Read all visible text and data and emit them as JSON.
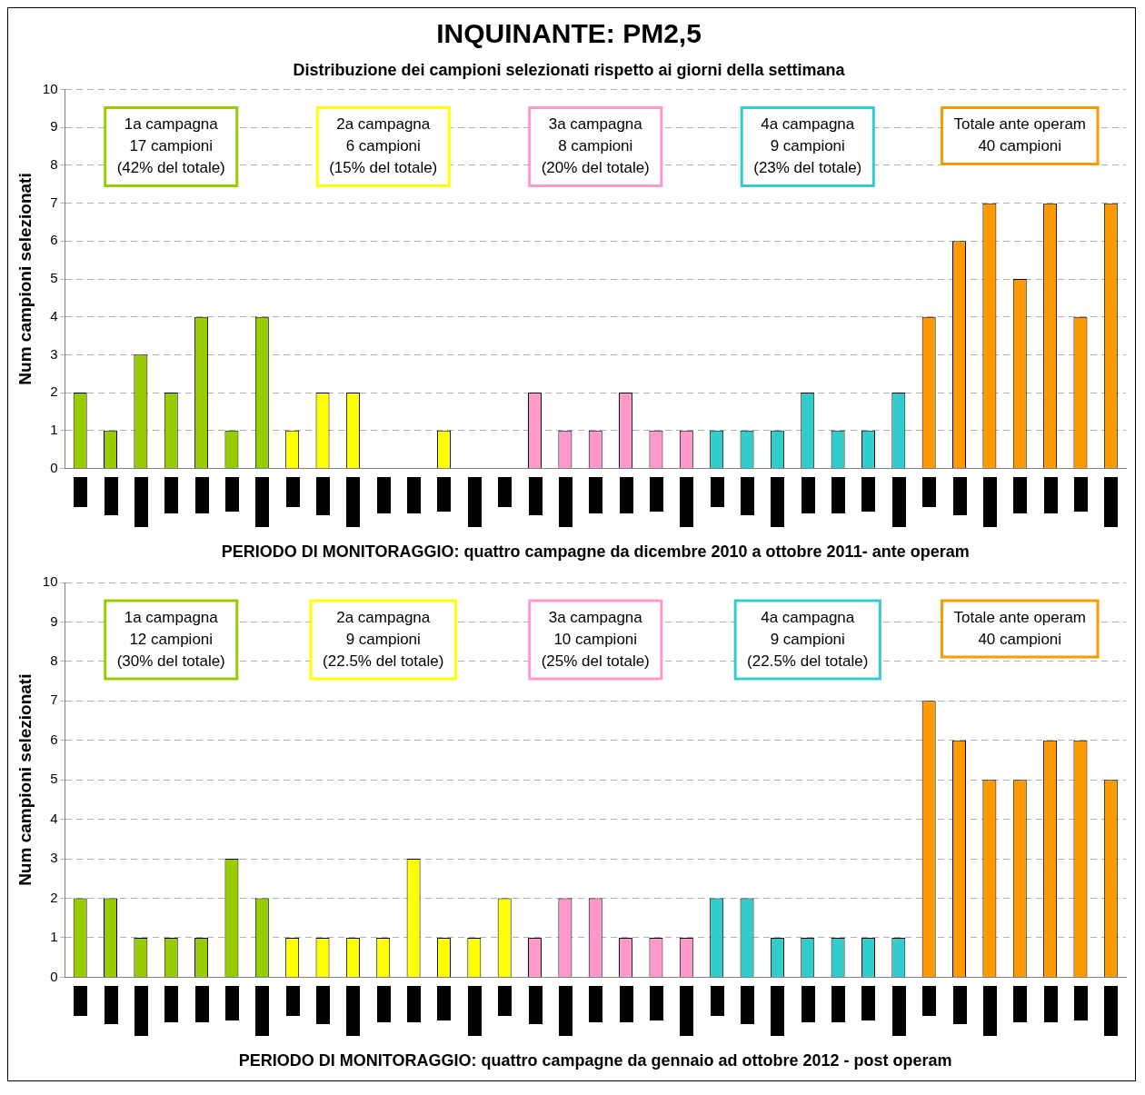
{
  "chart_data": [
    {
      "type": "bar",
      "title": "INQUINANTE: PM2,5",
      "subtitle": "Distribuzione dei campioni selezionati rispetto ai giorni della settimana",
      "xlabel": "PERIODO DI MONITORAGGIO: quattro campagne da dicembre 2010 a ottobre 2011- ante operam",
      "ylabel": "Num campioni selezionati",
      "categories": [
        null,
        null,
        null,
        null,
        null,
        null,
        null,
        null,
        null,
        null,
        null,
        null,
        null,
        null,
        null,
        null,
        null,
        null,
        null,
        null,
        null,
        null,
        null,
        null,
        null,
        null,
        null,
        null,
        null,
        null,
        null,
        null,
        null,
        null,
        null
      ],
      "values": [
        2,
        1,
        3,
        2,
        4,
        1,
        4,
        1,
        2,
        2,
        0,
        0,
        1,
        0,
        0,
        2,
        1,
        1,
        2,
        1,
        1,
        1,
        1,
        1,
        2,
        1,
        1,
        2,
        4,
        6,
        7,
        5,
        7,
        4,
        7
      ],
      "colors": [
        "#99cc00",
        "#99cc00",
        "#99cc00",
        "#99cc00",
        "#99cc00",
        "#99cc00",
        "#99cc00",
        "#ffff00",
        "#ffff00",
        "#ffff00",
        "#ffff00",
        "#ffff00",
        "#ffff00",
        "#ffff00",
        "#ff99cc",
        "#ff99cc",
        "#ff99cc",
        "#ff99cc",
        "#ff99cc",
        "#ff99cc",
        "#ff99cc",
        "#33cccc",
        "#33cccc",
        "#33cccc",
        "#33cccc",
        "#33cccc",
        "#33cccc",
        "#33cccc",
        "#ff9900",
        "#ff9900",
        "#ff9900",
        "#ff9900",
        "#ff9900",
        "#ff9900",
        "#ff9900"
      ],
      "ylim": [
        0,
        10
      ],
      "yticks": [
        0,
        1,
        2,
        3,
        4,
        5,
        6,
        7,
        8,
        9,
        10
      ],
      "grid": "y",
      "legend": false,
      "annotations": [
        "1a campagna\n17 campioni\n(42% del totale)",
        "2a campagna\n6 campioni\n(15% del totale)",
        "3a campagna\n8 campioni\n(20% del totale)",
        "4a campagna\n9 campioni\n(23% del totale)",
        "Totale ante operam\n40 campioni"
      ]
    },
    {
      "type": "bar",
      "xlabel": "PERIODO DI MONITORAGGIO: quattro campagne da gennaio ad ottobre 2012 - post operam",
      "ylabel": "Num campioni selezionati",
      "categories": [
        null,
        null,
        null,
        null,
        null,
        null,
        null,
        null,
        null,
        null,
        null,
        null,
        null,
        null,
        null,
        null,
        null,
        null,
        null,
        null,
        null,
        null,
        null,
        null,
        null,
        null,
        null,
        null,
        null,
        null,
        null,
        null,
        null,
        null,
        null
      ],
      "values": [
        2,
        2,
        1,
        1,
        1,
        3,
        2,
        1,
        1,
        1,
        1,
        3,
        1,
        1,
        2,
        1,
        2,
        2,
        1,
        1,
        1,
        2,
        2,
        1,
        1,
        1,
        1,
        1,
        7,
        6,
        5,
        5,
        6,
        6,
        5
      ],
      "colors": [
        "#99cc00",
        "#99cc00",
        "#99cc00",
        "#99cc00",
        "#99cc00",
        "#99cc00",
        "#99cc00",
        "#ffff00",
        "#ffff00",
        "#ffff00",
        "#ffff00",
        "#ffff00",
        "#ffff00",
        "#ffff00",
        "#ffff00",
        "#ff99cc",
        "#ff99cc",
        "#ff99cc",
        "#ff99cc",
        "#ff99cc",
        "#ff99cc",
        "#33cccc",
        "#33cccc",
        "#33cccc",
        "#33cccc",
        "#33cccc",
        "#33cccc",
        "#33cccc",
        "#ff9900",
        "#ff9900",
        "#ff9900",
        "#ff9900",
        "#ff9900",
        "#ff9900",
        "#ff9900"
      ],
      "ylim": [
        0,
        10
      ],
      "yticks": [
        0,
        1,
        2,
        3,
        4,
        5,
        6,
        7,
        8,
        9,
        10
      ],
      "grid": "y",
      "legend": false,
      "annotations": [
        "1a campagna\n12 campioni\n(30% del totale)",
        "2a campagna\n9 campioni\n(22.5% del totale)",
        "3a campagna\n10 campioni\n(25% del totale)",
        "4a campagna\n9 campioni\n(22.5% del totale)",
        "Totale ante operam\n40 campioni"
      ]
    }
  ]
}
